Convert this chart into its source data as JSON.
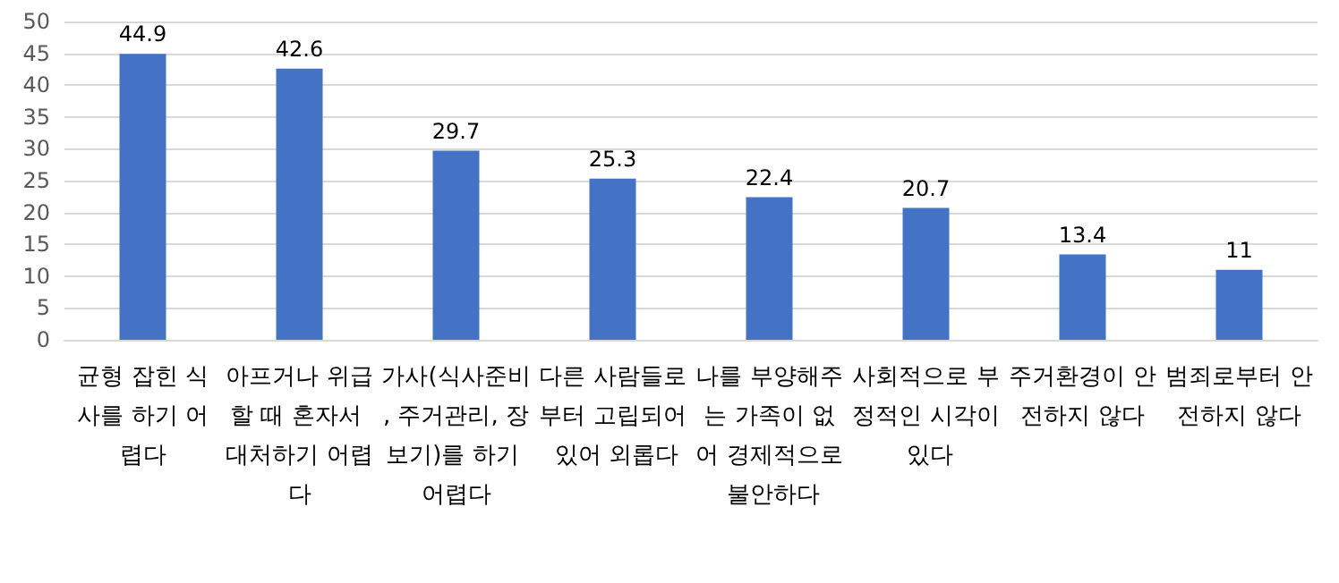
{
  "chart_data": {
    "type": "bar",
    "categories": [
      "균형 잡힌 식사를 하기 어렵다",
      "아프거나 위급할 때 혼자서 대처하기 어렵다",
      "가사(식사준비, 주거관리, 장보기)를 하기 어렵다",
      "다른 사람들로부터 고립되어 있어 외롭다",
      "나를 부양해주는 가족이 없어 경제적으로 불안하다",
      "사회적으로 부정적인 시각이 있다",
      "주거환경이 안전하지 않다",
      "범죄로부터 안전하지 않다"
    ],
    "values": [
      44.9,
      42.6,
      29.7,
      25.3,
      22.4,
      20.7,
      13.4,
      11
    ],
    "color": "#4472c4",
    "ylim": [
      0,
      50
    ],
    "yticks": [
      0,
      5,
      10,
      15,
      20,
      25,
      30,
      35,
      40,
      45,
      50
    ],
    "grid": "y",
    "data_labels": true
  }
}
